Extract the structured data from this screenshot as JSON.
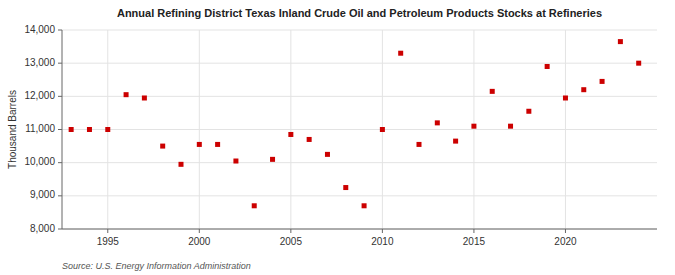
{
  "chart_data": {
    "type": "scatter",
    "title": "Annual Refining District Texas Inland Crude Oil and Petroleum Products Stocks at Refineries",
    "ylabel": "Thousand Barrels",
    "source": "Source: U.S. Energy Information Administration",
    "color": "#cc0000",
    "marker": "square",
    "grid": true,
    "xlim": [
      1992.5,
      2025
    ],
    "ylim": [
      8000,
      14000
    ],
    "xticks": [
      1995,
      2000,
      2005,
      2010,
      2015,
      2020
    ],
    "yticks": [
      {
        "value": 8000,
        "label": "8,000"
      },
      {
        "value": 9000,
        "label": "9,000"
      },
      {
        "value": 10000,
        "label": "10,000"
      },
      {
        "value": 11000,
        "label": "11,000"
      },
      {
        "value": 12000,
        "label": "12,000"
      },
      {
        "value": 13000,
        "label": "13,000"
      },
      {
        "value": 14000,
        "label": "14,000"
      }
    ],
    "x": [
      1993,
      1994,
      1995,
      1996,
      1997,
      1998,
      1999,
      2000,
      2001,
      2002,
      2003,
      2004,
      2005,
      2006,
      2007,
      2008,
      2009,
      2010,
      2011,
      2012,
      2013,
      2014,
      2015,
      2016,
      2017,
      2018,
      2019,
      2020,
      2021,
      2022,
      2023,
      2024
    ],
    "values": [
      11000,
      11000,
      11000,
      12050,
      11950,
      10500,
      9950,
      10550,
      10550,
      10050,
      8700,
      10100,
      10850,
      10700,
      10250,
      9250,
      8700,
      11000,
      13300,
      10550,
      11200,
      10650,
      11100,
      12150,
      11100,
      11550,
      12900,
      11950,
      12200,
      12450,
      13650,
      13000
    ]
  }
}
